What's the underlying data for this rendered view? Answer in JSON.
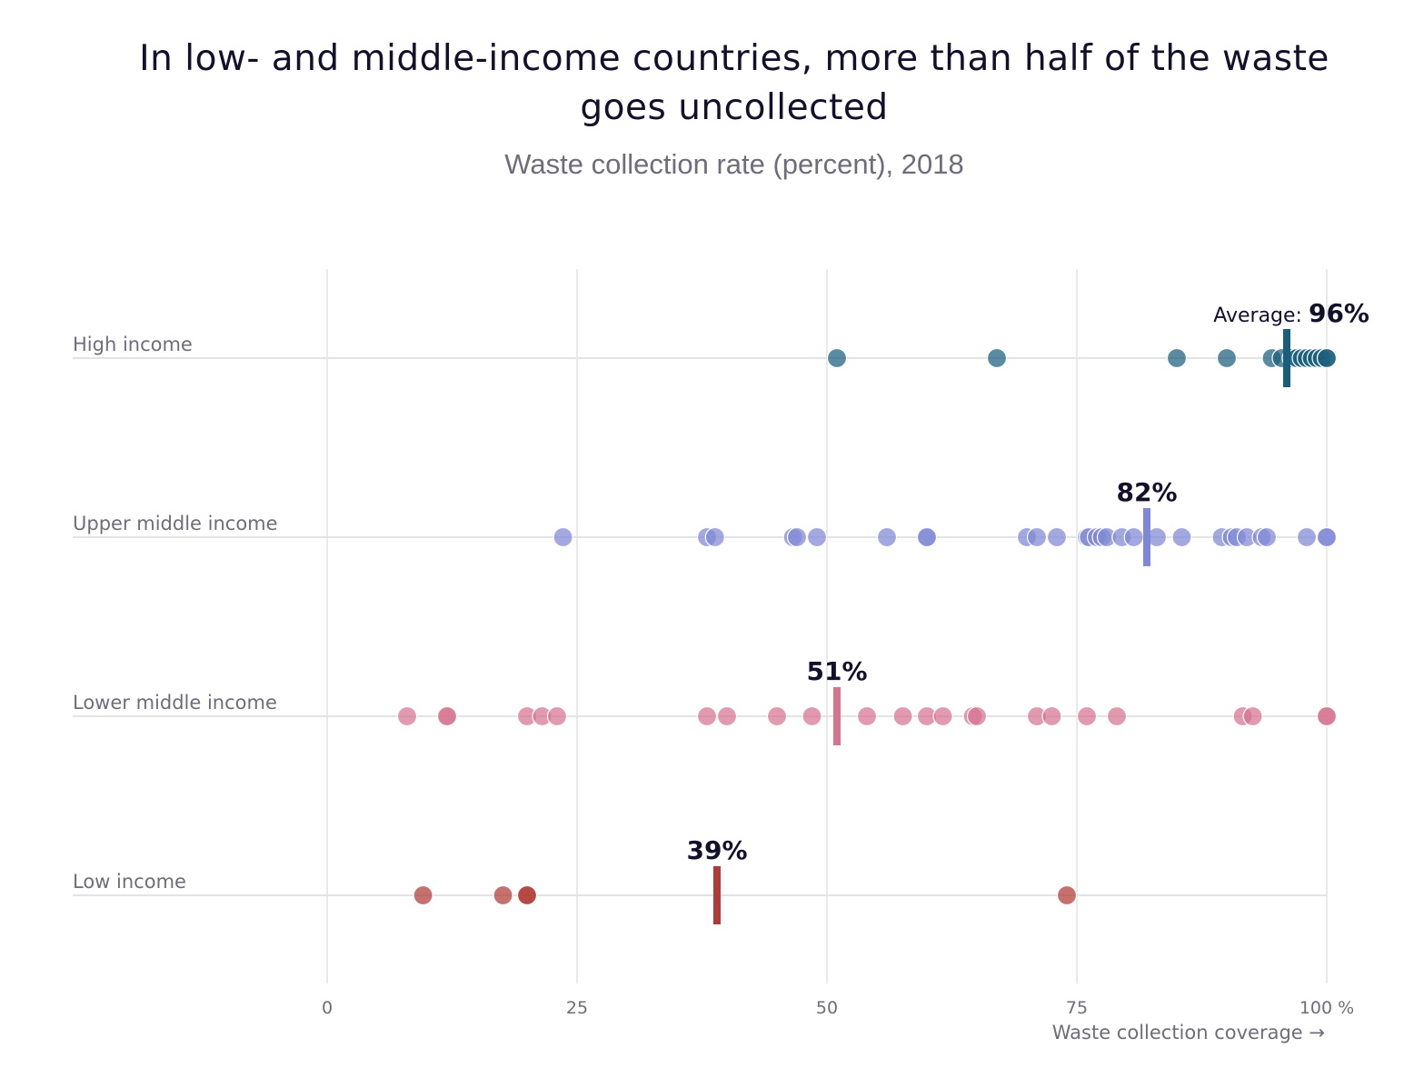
{
  "title": "In low- and middle-income countries, more than half of the waste goes uncollected",
  "title_lines": [
    "In low- and middle-income countries, more than half of the waste",
    "goes uncollected"
  ],
  "subtitle": "Waste collection rate (percent), 2018",
  "chart_data": {
    "type": "scatter",
    "title": "In low- and middle-income countries, more than half of the waste goes uncollected",
    "subtitle": "Waste collection rate (percent), 2018",
    "xlabel": "Waste collection coverage →",
    "ylabel": "",
    "xlim": [
      0,
      100
    ],
    "x_ticks": [
      0,
      25,
      50,
      75,
      100
    ],
    "x_tick_labels": [
      "0",
      "25",
      "50",
      "75",
      "100 %"
    ],
    "grid": true,
    "average_prefix": "Average:",
    "series": [
      {
        "name": "High income",
        "color": "#1b5e7b",
        "average": 96,
        "average_label": "96%",
        "values": [
          51,
          67,
          85,
          90,
          94.5,
          95.5,
          96.5,
          97,
          97.5,
          98,
          98.5,
          99,
          99.5,
          100,
          100
        ]
      },
      {
        "name": "Upper middle income",
        "color": "#7f88d4",
        "average": 82,
        "average_label": "82%",
        "values": [
          23.6,
          38,
          38.8,
          46.6,
          47,
          49,
          56,
          60,
          60,
          70,
          71,
          73,
          76,
          76.2,
          77,
          77.5,
          78,
          79.5,
          80.7,
          83,
          85.5,
          89.5,
          90.5,
          91,
          92,
          93.5,
          94,
          98,
          100,
          100
        ]
      },
      {
        "name": "Lower middle income",
        "color": "#d57390",
        "average": 51,
        "average_label": "51%",
        "values": [
          8,
          12,
          12,
          20,
          21.5,
          23,
          38,
          40,
          45,
          48.5,
          54,
          57.6,
          60,
          61.6,
          64.6,
          65,
          71,
          72.5,
          76,
          79,
          91.6,
          92.6,
          100,
          100
        ]
      },
      {
        "name": "Low income",
        "color": "#b23a36",
        "average": 39,
        "average_label": "39%",
        "values": [
          9.6,
          17.6,
          20,
          20,
          74
        ]
      }
    ]
  }
}
